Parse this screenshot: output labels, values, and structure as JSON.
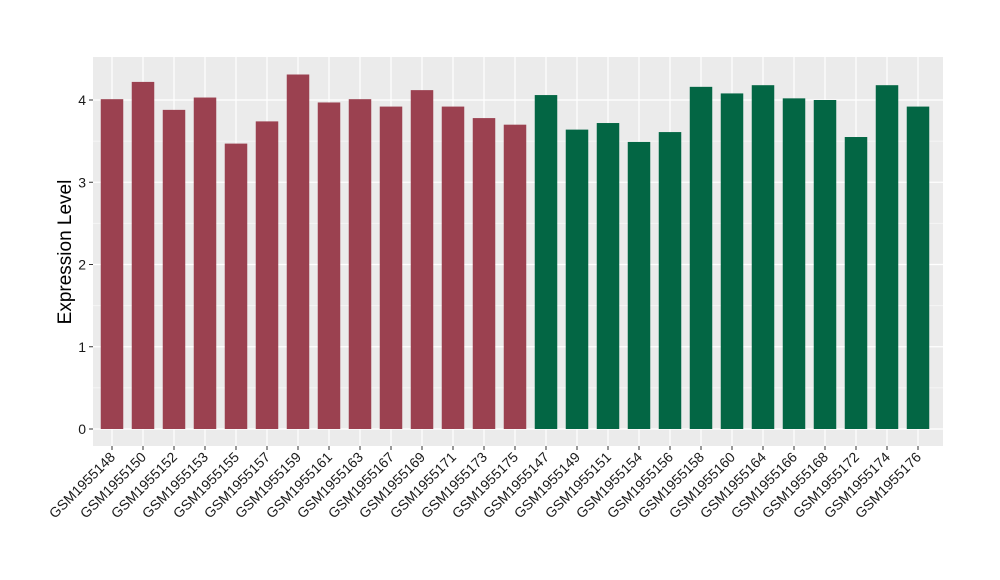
{
  "chart_data": {
    "type": "bar",
    "ylabel": "Expression Level",
    "xlabel": "",
    "ylim": [
      0,
      4.5
    ],
    "yticks": [
      0,
      1,
      2,
      3,
      4
    ],
    "grid": true,
    "background": "#EBEBEB",
    "categories": [
      "GSM1955148",
      "GSM1955150",
      "GSM1955152",
      "GSM1955153",
      "GSM1955155",
      "GSM1955157",
      "GSM1955159",
      "GSM1955161",
      "GSM1955163",
      "GSM1955167",
      "GSM1955169",
      "GSM1955171",
      "GSM1955173",
      "GSM1955175",
      "GSM1955147",
      "GSM1955149",
      "GSM1955151",
      "GSM1955154",
      "GSM1955156",
      "GSM1955158",
      "GSM1955160",
      "GSM1955164",
      "GSM1955166",
      "GSM1955168",
      "GSM1955172",
      "GSM1955174",
      "GSM1955176"
    ],
    "values": [
      4.01,
      4.22,
      3.88,
      4.03,
      3.47,
      3.74,
      4.31,
      3.97,
      4.01,
      3.92,
      4.12,
      3.92,
      3.78,
      3.7,
      4.06,
      3.64,
      3.72,
      3.49,
      3.61,
      4.16,
      4.08,
      4.18,
      4.02,
      4.0,
      3.55,
      4.18,
      3.92
    ],
    "group_sizes": [
      14,
      13
    ],
    "group_colors": [
      "#9B4150",
      "#036644"
    ]
  }
}
